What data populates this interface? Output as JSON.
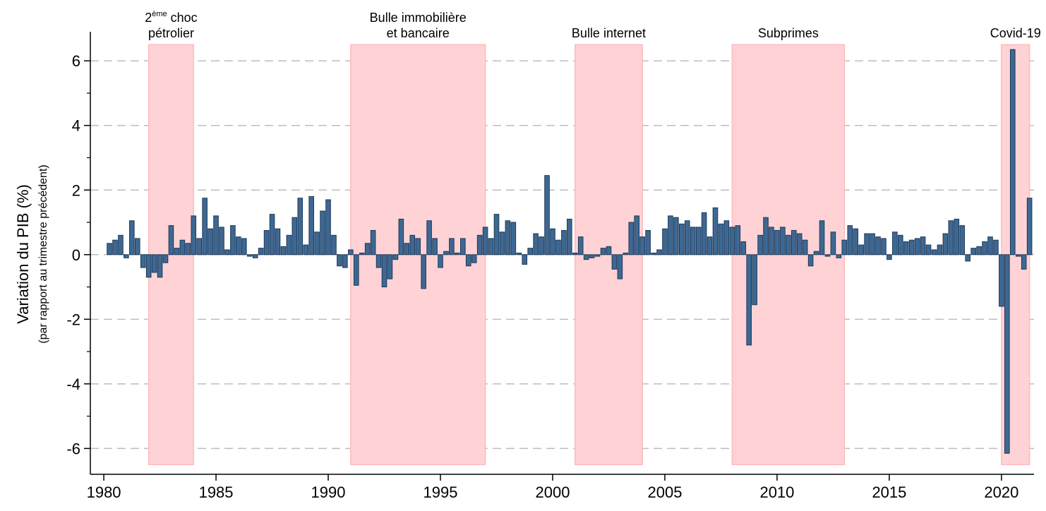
{
  "chart_data": {
    "type": "bar",
    "ylabel": "Variation du PIB (%)",
    "ylabel_sub": "(par rapport au trimestre précédent)",
    "color": "#3d6893",
    "edge_color": "#1e3a58",
    "band_color": "#ffd3d5",
    "band_edge": "#ffb9bc",
    "xlim": [
      1979.4,
      2021.45
    ],
    "ylim": [
      -6.8,
      6.9
    ],
    "xticks": [
      1980,
      1985,
      1990,
      1995,
      2000,
      2005,
      2010,
      2015,
      2020
    ],
    "yticks": [
      -6,
      -4,
      -2,
      0,
      2,
      4,
      6
    ],
    "yticks_minor": [
      -5,
      -3,
      -1,
      1,
      3,
      5
    ],
    "grid": true,
    "bands": [
      {
        "start": 1982,
        "end": 1984,
        "lo": -6.5,
        "hi": 6.5,
        "lines": [
          {
            "parts": [
              "2",
              "ème",
              " choc"
            ],
            "sup": 1
          },
          "pétrolier"
        ]
      },
      {
        "start": 1991,
        "end": 1997,
        "lo": -6.5,
        "hi": 6.5,
        "lines": [
          "Bulle immobilière",
          "et bancaire"
        ]
      },
      {
        "start": 2001,
        "end": 2004,
        "lo": -6.5,
        "hi": 6.5,
        "lines": [
          "Bulle internet"
        ]
      },
      {
        "start": 2008,
        "end": 2013,
        "lo": -6.5,
        "hi": 6.5,
        "lines": [
          "Subprimes"
        ]
      },
      {
        "start": 2020,
        "end": 2021.25,
        "lo": -6.5,
        "hi": 6.5,
        "lines": [
          "Covid-19"
        ]
      }
    ],
    "x": [
      1980.25,
      1980.5,
      1980.75,
      1981,
      1981.25,
      1981.5,
      1981.75,
      1982,
      1982.25,
      1982.5,
      1982.75,
      1983,
      1983.25,
      1983.5,
      1983.75,
      1984,
      1984.25,
      1984.5,
      1984.75,
      1985,
      1985.25,
      1985.5,
      1985.75,
      1986,
      1986.25,
      1986.5,
      1986.75,
      1987,
      1987.25,
      1987.5,
      1987.75,
      1988,
      1988.25,
      1988.5,
      1988.75,
      1989,
      1989.25,
      1989.5,
      1989.75,
      1990,
      1990.25,
      1990.5,
      1990.75,
      1991,
      1991.25,
      1991.5,
      1991.75,
      1992,
      1992.25,
      1992.5,
      1992.75,
      1993,
      1993.25,
      1993.5,
      1993.75,
      1994,
      1994.25,
      1994.5,
      1994.75,
      1995,
      1995.25,
      1995.5,
      1995.75,
      1996,
      1996.25,
      1996.5,
      1996.75,
      1997,
      1997.25,
      1997.5,
      1997.75,
      1998,
      1998.25,
      1998.5,
      1998.75,
      1999,
      1999.25,
      1999.5,
      1999.75,
      2000,
      2000.25,
      2000.5,
      2000.75,
      2001,
      2001.25,
      2001.5,
      2001.75,
      2002,
      2002.25,
      2002.5,
      2002.75,
      2003,
      2003.25,
      2003.5,
      2003.75,
      2004,
      2004.25,
      2004.5,
      2004.75,
      2005,
      2005.25,
      2005.5,
      2005.75,
      2006,
      2006.25,
      2006.5,
      2006.75,
      2007,
      2007.25,
      2007.5,
      2007.75,
      2008,
      2008.25,
      2008.5,
      2008.75,
      2009,
      2009.25,
      2009.5,
      2009.75,
      2010,
      2010.25,
      2010.5,
      2010.75,
      2011,
      2011.25,
      2011.5,
      2011.75,
      2012,
      2012.25,
      2012.5,
      2012.75,
      2013,
      2013.25,
      2013.5,
      2013.75,
      2014,
      2014.25,
      2014.5,
      2014.75,
      2015,
      2015.25,
      2015.5,
      2015.75,
      2016,
      2016.25,
      2016.5,
      2016.75,
      2017,
      2017.25,
      2017.5,
      2017.75,
      2018,
      2018.25,
      2018.5,
      2018.75,
      2019,
      2019.25,
      2019.5,
      2019.75,
      2020,
      2020.25,
      2020.5,
      2020.75,
      2021,
      2021.25
    ],
    "values": [
      0.35,
      0.45,
      0.6,
      -0.1,
      1.05,
      0.5,
      -0.4,
      -0.7,
      -0.55,
      -0.7,
      -0.25,
      0.9,
      0.2,
      0.45,
      0.35,
      1.2,
      0.5,
      1.75,
      0.8,
      1.2,
      0.85,
      0.15,
      0.9,
      0.55,
      0.5,
      -0.05,
      -0.1,
      0.2,
      0.75,
      1.25,
      0.8,
      0.25,
      0.6,
      1.15,
      1.75,
      0.3,
      1.8,
      0.7,
      1.35,
      1.7,
      0.6,
      -0.35,
      -0.4,
      0.15,
      -0.95,
      0.05,
      0.35,
      0.75,
      -0.4,
      -1.0,
      -0.75,
      -0.15,
      1.1,
      0.35,
      0.6,
      0.5,
      -1.05,
      1.05,
      0.5,
      -0.4,
      0.1,
      0.5,
      0.05,
      0.5,
      -0.35,
      -0.25,
      0.6,
      0.85,
      0.5,
      1.25,
      0.7,
      1.05,
      1.0,
      0.05,
      -0.3,
      0.2,
      0.65,
      0.55,
      2.45,
      0.8,
      0.45,
      0.75,
      1.1,
      0.05,
      0.55,
      -0.15,
      -0.1,
      -0.05,
      0.2,
      0.25,
      -0.45,
      -0.75,
      0.05,
      1.0,
      1.2,
      0.55,
      0.75,
      0.05,
      0.15,
      0.8,
      1.2,
      1.15,
      0.95,
      1.05,
      0.85,
      0.85,
      1.3,
      0.55,
      1.45,
      0.95,
      1.05,
      0.85,
      0.9,
      0.4,
      -2.8,
      -1.55,
      0.6,
      1.15,
      0.85,
      0.75,
      0.85,
      0.6,
      0.75,
      0.65,
      0.45,
      -0.35,
      0.1,
      1.05,
      -0.05,
      0.7,
      -0.1,
      0.45,
      0.9,
      0.8,
      0.3,
      0.65,
      0.65,
      0.55,
      0.5,
      -0.15,
      0.7,
      0.6,
      0.4,
      0.45,
      0.5,
      0.55,
      0.3,
      0.15,
      0.3,
      0.65,
      1.05,
      1.1,
      0.9,
      -0.2,
      0.2,
      0.25,
      0.4,
      0.55,
      0.45,
      -1.6,
      -6.15,
      6.35,
      -0.05,
      -0.45,
      1.75
    ]
  }
}
